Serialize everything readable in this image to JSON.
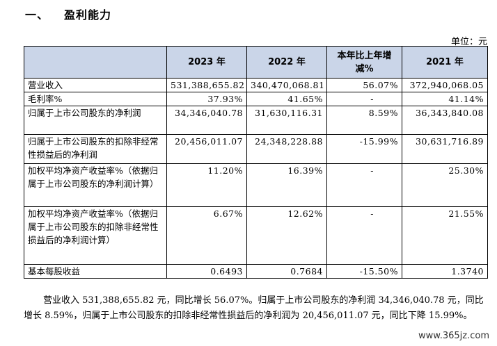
{
  "heading": {
    "number": "一、",
    "title": "盈利能力"
  },
  "unit": "单位：元",
  "table": {
    "headers": [
      "",
      "2023 年",
      "2022 年",
      "本年比上年增减%",
      "2021 年"
    ],
    "rows": [
      {
        "label": "营业收入",
        "y2023": "531,388,655.82",
        "y2022": "340,470,068.81",
        "change": "56.07%",
        "y2021": "372,940,068.05"
      },
      {
        "label": "毛利率%",
        "y2023": "37.93%",
        "y2022": "41.65%",
        "change": "-",
        "y2021": "41.14%"
      },
      {
        "label": "归属于上市公司股东的净利润",
        "y2023": "34,346,040.78",
        "y2022": "31,630,116.31",
        "change": "8.59%",
        "y2021": "36,343,840.08"
      },
      {
        "label": "归属于上市公司股东的扣除非经常性损益后的净利润",
        "y2023": "20,456,011.07",
        "y2022": "24,348,228.88",
        "change": "-15.99%",
        "y2021": "30,631,716.89"
      },
      {
        "label": "加权平均净资产收益率%（依据归属于上市公司股东的净利润计算）",
        "y2023": "11.20%",
        "y2022": "16.39%",
        "change": "-",
        "y2021": "25.30%"
      },
      {
        "label": "加权平均净资产收益率%（依据归属于上市公司股东的扣除非经常性损益后的净利润计算）",
        "y2023": "6.67%",
        "y2022": "12.62%",
        "change": "-",
        "y2021": "21.55%"
      },
      {
        "label": "基本每股收益",
        "y2023": "0.6493",
        "y2022": "0.7684",
        "change": "-15.50%",
        "y2021": "1.3740"
      }
    ]
  },
  "summary": "营业收入 531,388,655.82 元，同比增长 56.07%。归属于上市公司股东的净利润 34,346,040.78 元，同比增长 8.59%，归属于上市公司股东的扣除非经常性损益后的净利润为 20,456,011.07 元，同比下降 15.99%。",
  "watermark": "www.365jz.com"
}
